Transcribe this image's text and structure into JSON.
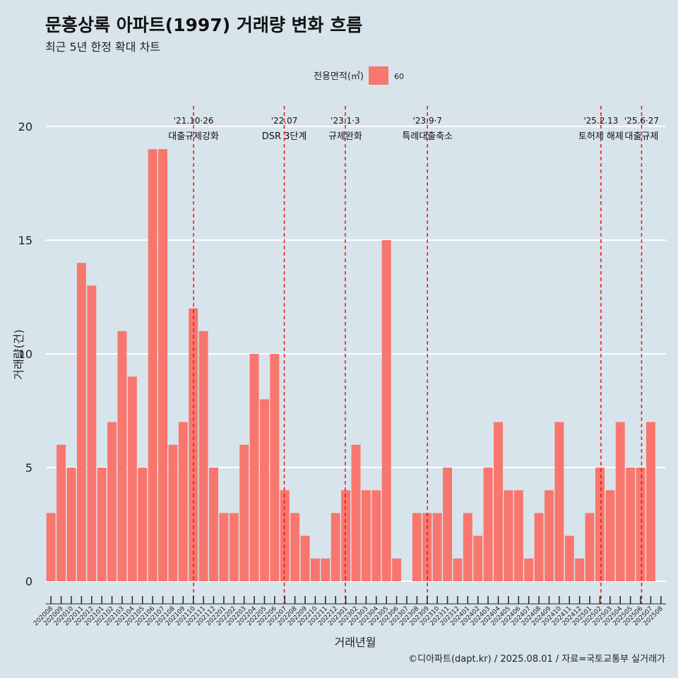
{
  "title": "문흥상록 아파트(1997) 거래량 변화 흐름",
  "subtitle": "최근 5년 한정 확대 차트",
  "caption": "©디아파트(dapt.kr) / 2025.08.01 / 자료=국토교통부 실거래가",
  "colors": {
    "background": "#d8e4eb",
    "bar": "#f8766d",
    "grid": "#ffffff",
    "event_line": "#ee1111"
  },
  "chart_data": {
    "type": "bar",
    "xlabel": "거래년월",
    "ylabel": "거래량(건)",
    "ylim": [
      0,
      20
    ],
    "yticks": [
      0,
      5,
      10,
      15,
      20
    ],
    "grid": true,
    "legend": {
      "title": "전용면적(㎡)",
      "placement": "top"
    },
    "categories": [
      "202008",
      "202009",
      "202010",
      "202011",
      "202012",
      "202101",
      "202102",
      "202103",
      "202104",
      "202105",
      "202106",
      "202107",
      "202108",
      "202109",
      "202110",
      "202111",
      "202112",
      "202201",
      "202202",
      "202203",
      "202204",
      "202205",
      "202206",
      "202207",
      "202208",
      "202209",
      "202210",
      "202211",
      "202212",
      "202301",
      "202302",
      "202303",
      "202304",
      "202305",
      "202306",
      "202307",
      "202308",
      "202309",
      "202310",
      "202311",
      "202312",
      "202401",
      "202402",
      "202403",
      "202404",
      "202405",
      "202406",
      "202407",
      "202408",
      "202409",
      "202410",
      "202411",
      "202412",
      "202501",
      "202502",
      "202503",
      "202504",
      "202505",
      "202506",
      "202507",
      "202508"
    ],
    "series": [
      {
        "name": "60",
        "values": [
          3,
          6,
          5,
          14,
          13,
          5,
          7,
          11,
          9,
          5,
          19,
          19,
          6,
          7,
          12,
          11,
          5,
          3,
          3,
          6,
          10,
          8,
          10,
          4,
          3,
          2,
          1,
          1,
          3,
          4,
          6,
          4,
          4,
          15,
          1,
          0,
          3,
          3,
          3,
          5,
          1,
          3,
          2,
          5,
          7,
          4,
          4,
          1,
          3,
          4,
          7,
          2,
          1,
          3,
          5,
          4,
          7,
          5,
          5,
          7,
          null
        ]
      }
    ],
    "annotations": [
      {
        "date": "'21.10·26",
        "label": "대출규제강화",
        "month": "202110",
        "offset": 0.03
      },
      {
        "date": "'22.07",
        "label": "DSR 3단계",
        "month": "202207",
        "offset": -0.05
      },
      {
        "date": "'23.1·3",
        "label": "규제완화",
        "month": "202301",
        "offset": -0.05
      },
      {
        "date": "'23.9·7",
        "label": "특례대출축소",
        "month": "202309",
        "offset": 0.03
      },
      {
        "date": "'25.2.13",
        "label": "토허제 해제",
        "month": "202502",
        "offset": 0.1
      },
      {
        "date": "'25.6·27",
        "label": "대출규제",
        "month": "202506",
        "offset": 0.1
      }
    ]
  }
}
